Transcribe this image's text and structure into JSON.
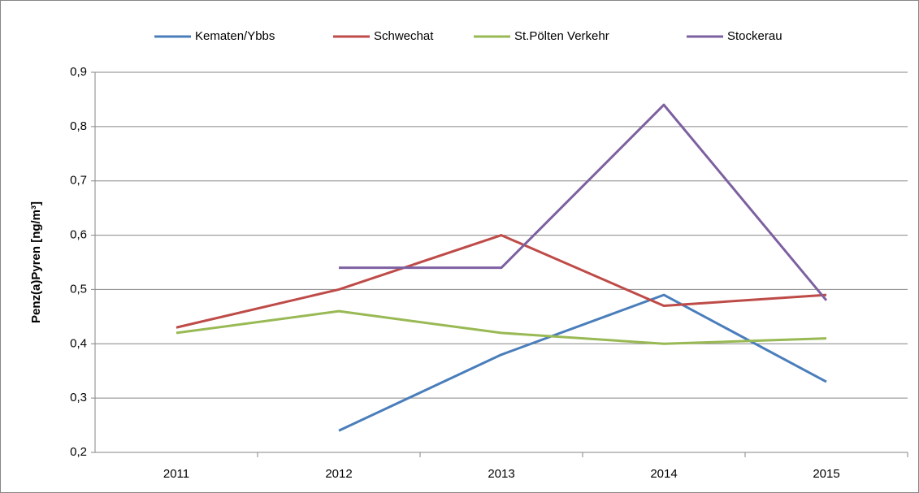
{
  "chart_data": {
    "type": "line",
    "y_label": "Penz(a)Pyren [ng/m³]",
    "categories": [
      "2011",
      "2012",
      "2013",
      "2014",
      "2015"
    ],
    "series": [
      {
        "name": "Kematen/Ybbs",
        "color": "#4a7ebb",
        "values": [
          null,
          0.24,
          0.38,
          0.49,
          0.33
        ]
      },
      {
        "name": "Schwechat",
        "color": "#be4b48",
        "values": [
          0.43,
          0.5,
          0.6,
          0.47,
          0.49
        ]
      },
      {
        "name": "St.Pölten Verkehr",
        "color": "#98b954",
        "values": [
          0.42,
          0.46,
          0.42,
          0.4,
          0.41
        ]
      },
      {
        "name": "Stockerau",
        "color": "#7d60a0",
        "values": [
          null,
          0.54,
          0.54,
          0.84,
          0.48
        ]
      }
    ],
    "ylim": [
      0.2,
      0.9
    ],
    "yticks": [
      {
        "value": 0.2,
        "label": "0,2"
      },
      {
        "value": 0.3,
        "label": "0,3"
      },
      {
        "value": 0.4,
        "label": "0,4"
      },
      {
        "value": 0.5,
        "label": "0,5"
      },
      {
        "value": 0.6,
        "label": "0,6"
      },
      {
        "value": 0.7,
        "label": "0,7"
      },
      {
        "value": 0.8,
        "label": "0,8"
      },
      {
        "value": 0.9,
        "label": "0,9"
      }
    ],
    "grid": true,
    "legend": "top"
  }
}
